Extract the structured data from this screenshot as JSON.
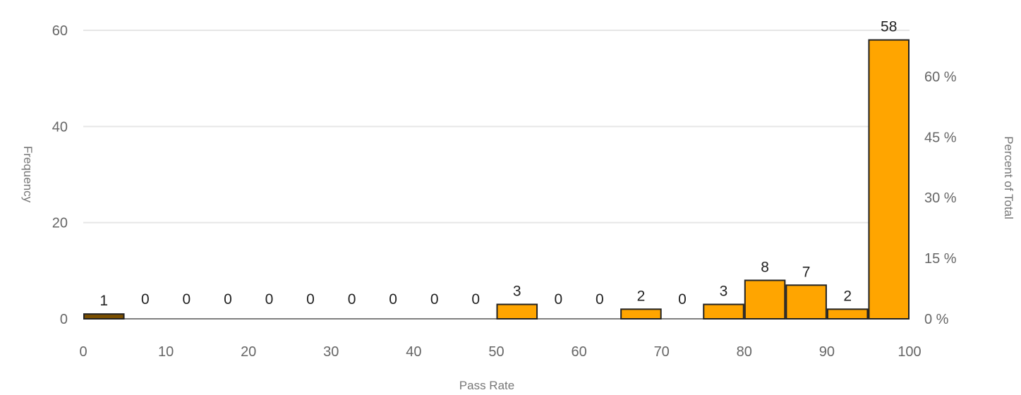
{
  "chart_data": {
    "type": "bar",
    "title": "",
    "xlabel": "Pass Rate",
    "ylabel": "Frequency",
    "y2label": "Percent of Total",
    "bin_width": 5,
    "x_min": 0,
    "x_max": 100,
    "x_ticks": [
      "0",
      "10",
      "20",
      "30",
      "40",
      "50",
      "60",
      "70",
      "80",
      "90",
      "100"
    ],
    "ylim": [
      0,
      60
    ],
    "y_ticks": [
      "0",
      "20",
      "40",
      "60"
    ],
    "y2_ticks": [
      "0 %",
      "15 %",
      "30 %",
      "45 %",
      "60 %"
    ],
    "bins": [
      {
        "start": 0,
        "end": 5,
        "value": 1
      },
      {
        "start": 5,
        "end": 10,
        "value": 0
      },
      {
        "start": 10,
        "end": 15,
        "value": 0
      },
      {
        "start": 15,
        "end": 20,
        "value": 0
      },
      {
        "start": 20,
        "end": 25,
        "value": 0
      },
      {
        "start": 25,
        "end": 30,
        "value": 0
      },
      {
        "start": 30,
        "end": 35,
        "value": 0
      },
      {
        "start": 35,
        "end": 40,
        "value": 0
      },
      {
        "start": 40,
        "end": 45,
        "value": 0
      },
      {
        "start": 45,
        "end": 50,
        "value": 0
      },
      {
        "start": 50,
        "end": 55,
        "value": 3
      },
      {
        "start": 55,
        "end": 60,
        "value": 0
      },
      {
        "start": 60,
        "end": 65,
        "value": 0
      },
      {
        "start": 65,
        "end": 70,
        "value": 2
      },
      {
        "start": 70,
        "end": 75,
        "value": 0
      },
      {
        "start": 75,
        "end": 80,
        "value": 3
      },
      {
        "start": 80,
        "end": 85,
        "value": 8
      },
      {
        "start": 85,
        "end": 90,
        "value": 7
      },
      {
        "start": 90,
        "end": 95,
        "value": 2
      },
      {
        "start": 95,
        "end": 100,
        "value": 58
      }
    ],
    "grid": true,
    "colors": {
      "bar_fill": "#FFA500",
      "first_bar_fill": "#7A4F00",
      "bar_stroke": "#222222",
      "grid": "#E6E6E6",
      "baseline": "#7F7F7F"
    }
  }
}
